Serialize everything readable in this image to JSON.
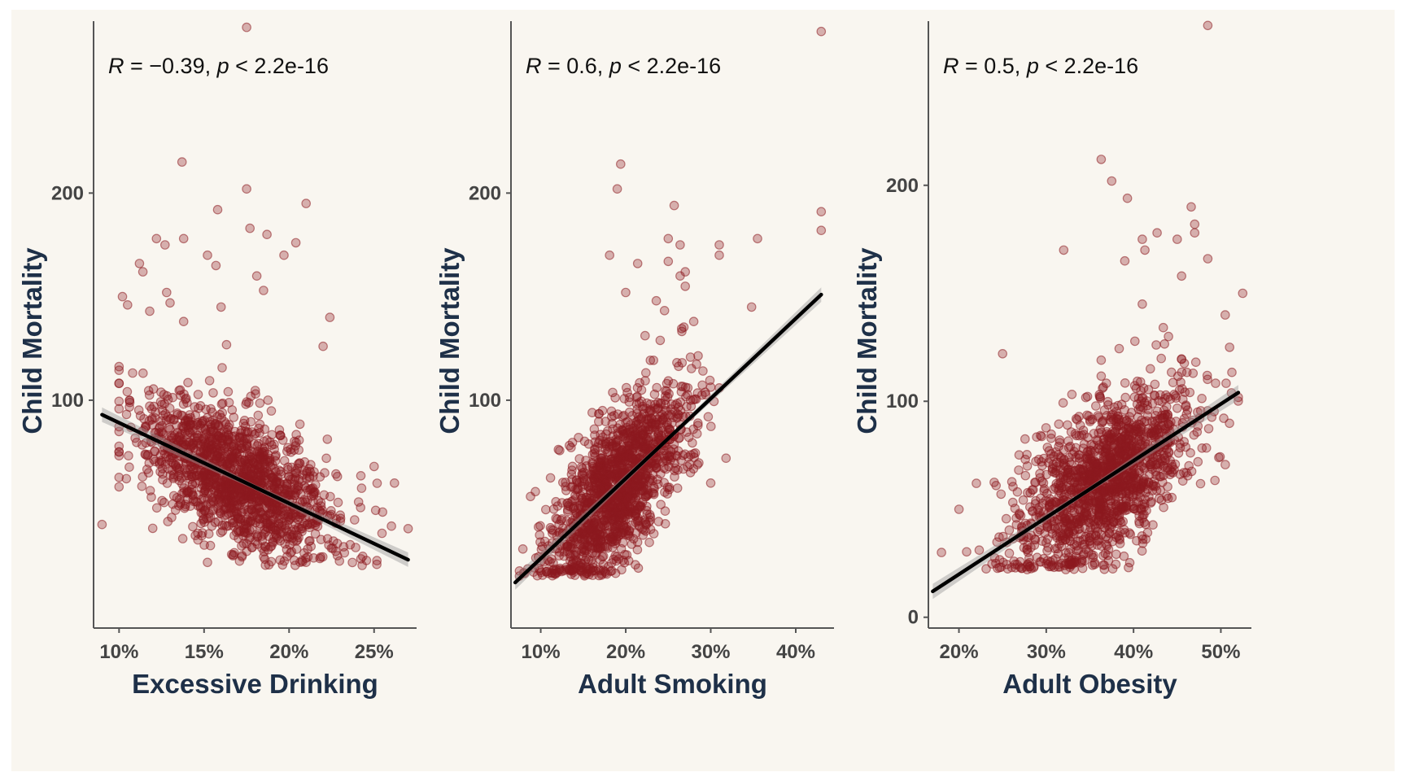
{
  "colors": {
    "background": "#f9f6f0",
    "points": "#8c1a1f",
    "fit_line": "#000000",
    "confidence_band": "#9a9a9a",
    "axis_title": "#1e3048",
    "tick_label": "#444444"
  },
  "chart_data": [
    {
      "type": "scatter",
      "xlabel": "Excessive Drinking",
      "ylabel": "Child Mortality",
      "annotation": {
        "r_prefix": "R",
        "r_value": " = −0.39, ",
        "p_prefix": "p",
        "p_value": " < 2.2e-16"
      },
      "xlim": [
        0.085,
        0.275
      ],
      "ylim": [
        -10,
        283
      ],
      "x_ticks": [
        {
          "value": 0.1,
          "label": "10%"
        },
        {
          "value": 0.15,
          "label": "15%"
        },
        {
          "value": 0.2,
          "label": "20%"
        },
        {
          "value": 0.25,
          "label": "25%"
        }
      ],
      "y_ticks": [
        {
          "value": 100,
          "label": "100"
        },
        {
          "value": 200,
          "label": "200"
        }
      ],
      "grid": false,
      "correlation": -0.39,
      "p_value": "< 2.2e-16",
      "regression": {
        "x": [
          0.09,
          0.27
        ],
        "y": [
          93,
          23
        ]
      },
      "cloud": {
        "n": 1500,
        "x_mean": 0.17,
        "x_sd": 0.028,
        "x_range": [
          0.1,
          0.265
        ],
        "y_sd": 16,
        "y_min": 20
      },
      "outliers": [
        {
          "x": 0.09,
          "y": 40
        },
        {
          "x": 0.175,
          "y": 280
        },
        {
          "x": 0.137,
          "y": 215
        },
        {
          "x": 0.175,
          "y": 202
        },
        {
          "x": 0.21,
          "y": 195
        },
        {
          "x": 0.158,
          "y": 192
        },
        {
          "x": 0.177,
          "y": 183
        },
        {
          "x": 0.187,
          "y": 180
        },
        {
          "x": 0.122,
          "y": 178
        },
        {
          "x": 0.138,
          "y": 178
        },
        {
          "x": 0.204,
          "y": 176
        },
        {
          "x": 0.127,
          "y": 175
        },
        {
          "x": 0.197,
          "y": 170
        },
        {
          "x": 0.152,
          "y": 170
        },
        {
          "x": 0.157,
          "y": 165
        },
        {
          "x": 0.112,
          "y": 166
        },
        {
          "x": 0.114,
          "y": 162
        },
        {
          "x": 0.181,
          "y": 160
        },
        {
          "x": 0.185,
          "y": 153
        },
        {
          "x": 0.102,
          "y": 150
        },
        {
          "x": 0.128,
          "y": 152
        },
        {
          "x": 0.105,
          "y": 146
        },
        {
          "x": 0.118,
          "y": 143
        },
        {
          "x": 0.224,
          "y": 140
        },
        {
          "x": 0.138,
          "y": 138
        },
        {
          "x": 0.22,
          "y": 126
        },
        {
          "x": 0.13,
          "y": 147
        },
        {
          "x": 0.16,
          "y": 145
        },
        {
          "x": 0.25,
          "y": 68
        },
        {
          "x": 0.262,
          "y": 60
        },
        {
          "x": 0.27,
          "y": 38
        },
        {
          "x": 0.255,
          "y": 46
        }
      ]
    },
    {
      "type": "scatter",
      "xlabel": "Adult Smoking",
      "ylabel": "Child Mortality",
      "annotation": {
        "r_prefix": "R",
        "r_value": " = 0.6, ",
        "p_prefix": "p",
        "p_value": " < 2.2e-16"
      },
      "xlim": [
        0.065,
        0.445
      ],
      "ylim": [
        -10,
        283
      ],
      "x_ticks": [
        {
          "value": 0.1,
          "label": "10%"
        },
        {
          "value": 0.2,
          "label": "20%"
        },
        {
          "value": 0.3,
          "label": "30%"
        },
        {
          "value": 0.4,
          "label": "40%"
        }
      ],
      "y_ticks": [
        {
          "value": 100,
          "label": "100"
        },
        {
          "value": 200,
          "label": "200"
        }
      ],
      "grid": false,
      "correlation": 0.6,
      "p_value": "< 2.2e-16",
      "regression": {
        "x": [
          0.07,
          0.43
        ],
        "y": [
          12,
          151
        ]
      },
      "cloud": {
        "n": 1500,
        "x_mean": 0.19,
        "x_sd": 0.04,
        "x_range": [
          0.075,
          0.31
        ],
        "y_sd": 17,
        "y_min": 15
      },
      "outliers": [
        {
          "x": 0.43,
          "y": 278
        },
        {
          "x": 0.194,
          "y": 214
        },
        {
          "x": 0.19,
          "y": 202
        },
        {
          "x": 0.257,
          "y": 194
        },
        {
          "x": 0.43,
          "y": 191
        },
        {
          "x": 0.43,
          "y": 182
        },
        {
          "x": 0.355,
          "y": 178
        },
        {
          "x": 0.25,
          "y": 178
        },
        {
          "x": 0.31,
          "y": 175
        },
        {
          "x": 0.264,
          "y": 175
        },
        {
          "x": 0.31,
          "y": 170
        },
        {
          "x": 0.181,
          "y": 170
        },
        {
          "x": 0.25,
          "y": 167
        },
        {
          "x": 0.214,
          "y": 166
        },
        {
          "x": 0.27,
          "y": 162
        },
        {
          "x": 0.264,
          "y": 160
        },
        {
          "x": 0.27,
          "y": 155
        },
        {
          "x": 0.348,
          "y": 145
        },
        {
          "x": 0.2,
          "y": 152
        },
        {
          "x": 0.236,
          "y": 148
        },
        {
          "x": 0.28,
          "y": 138
        },
        {
          "x": 0.3,
          "y": 60
        },
        {
          "x": 0.318,
          "y": 72
        },
        {
          "x": 0.297,
          "y": 92
        }
      ]
    },
    {
      "type": "scatter",
      "xlabel": "Adult Obesity",
      "ylabel": "Child Mortality",
      "annotation": {
        "r_prefix": "R",
        "r_value": " = 0.5, ",
        "p_prefix": "p",
        "p_value": " < 2.2e-16"
      },
      "xlim": [
        0.165,
        0.535
      ],
      "ylim": [
        -5,
        276
      ],
      "x_ticks": [
        {
          "value": 0.2,
          "label": "20%"
        },
        {
          "value": 0.3,
          "label": "30%"
        },
        {
          "value": 0.4,
          "label": "40%"
        },
        {
          "value": 0.5,
          "label": "50%"
        }
      ],
      "y_ticks": [
        {
          "value": 0,
          "label": "0"
        },
        {
          "value": 100,
          "label": "100"
        },
        {
          "value": 200,
          "label": "200"
        }
      ],
      "grid": false,
      "correlation": 0.5,
      "p_value": "< 2.2e-16",
      "regression": {
        "x": [
          0.17,
          0.52
        ],
        "y": [
          12,
          104
        ]
      },
      "cloud": {
        "n": 1500,
        "x_mean": 0.37,
        "x_sd": 0.05,
        "x_range": [
          0.18,
          0.52
        ],
        "y_sd": 17,
        "y_min": 22
      },
      "outliers": [
        {
          "x": 0.485,
          "y": 274
        },
        {
          "x": 0.363,
          "y": 212
        },
        {
          "x": 0.375,
          "y": 202
        },
        {
          "x": 0.393,
          "y": 194
        },
        {
          "x": 0.466,
          "y": 190
        },
        {
          "x": 0.47,
          "y": 182
        },
        {
          "x": 0.47,
          "y": 178
        },
        {
          "x": 0.427,
          "y": 178
        },
        {
          "x": 0.41,
          "y": 175
        },
        {
          "x": 0.45,
          "y": 175
        },
        {
          "x": 0.32,
          "y": 170
        },
        {
          "x": 0.485,
          "y": 166
        },
        {
          "x": 0.39,
          "y": 165
        },
        {
          "x": 0.413,
          "y": 170
        },
        {
          "x": 0.455,
          "y": 158
        },
        {
          "x": 0.525,
          "y": 150
        },
        {
          "x": 0.41,
          "y": 145
        },
        {
          "x": 0.505,
          "y": 140
        },
        {
          "x": 0.25,
          "y": 122
        },
        {
          "x": 0.51,
          "y": 125
        },
        {
          "x": 0.44,
          "y": 130
        },
        {
          "x": 0.2,
          "y": 50
        },
        {
          "x": 0.18,
          "y": 30
        },
        {
          "x": 0.22,
          "y": 62
        }
      ]
    }
  ]
}
